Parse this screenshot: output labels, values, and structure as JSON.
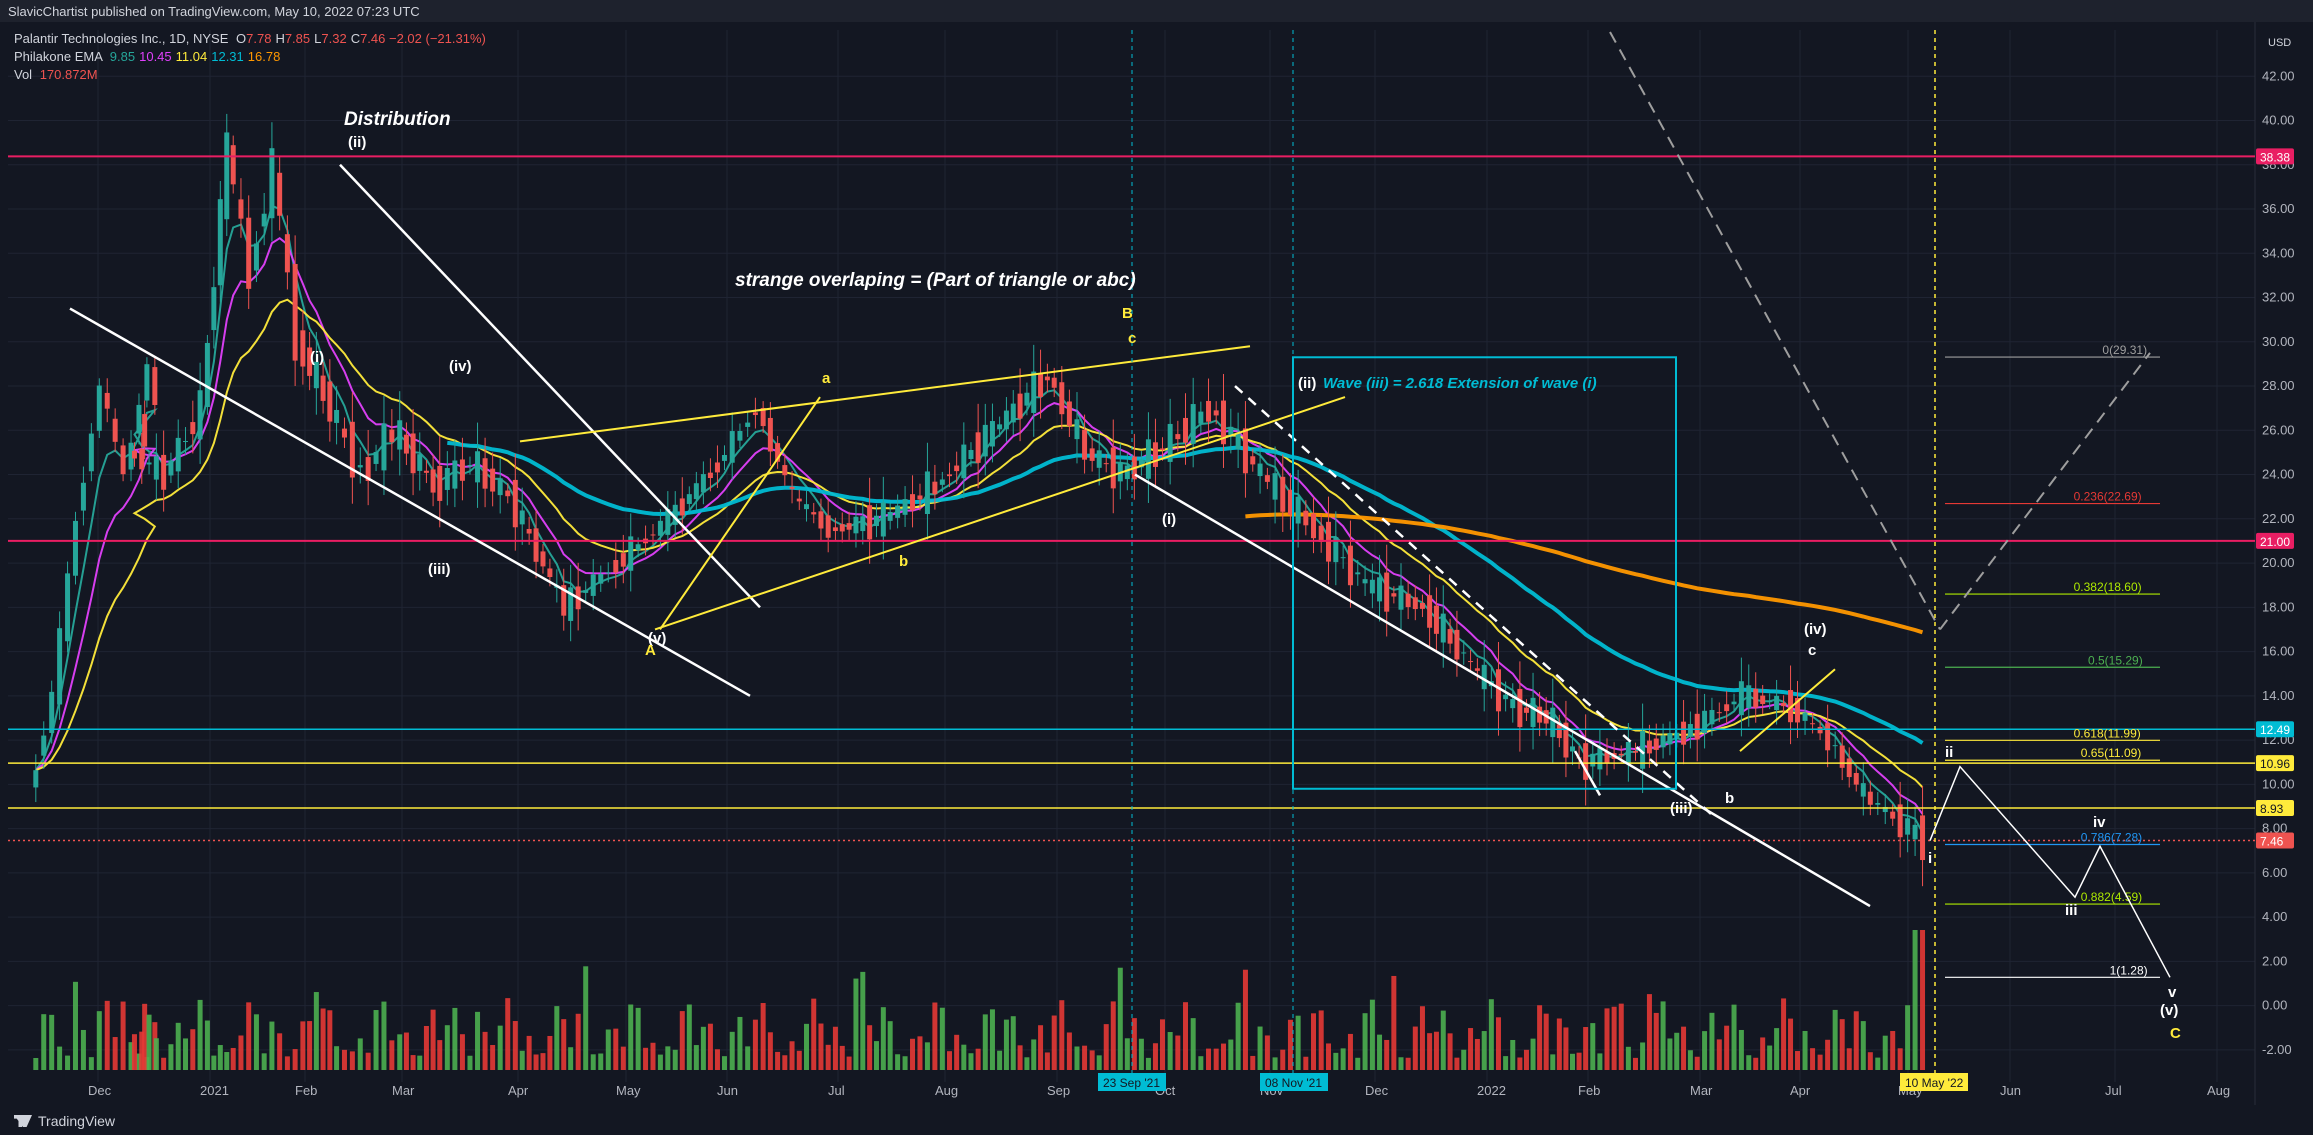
{
  "header": {
    "published": "SlavicChartist published on TradingView.com, May 10, 2022 07:23 UTC"
  },
  "legend": {
    "symbol": "Palantir Technologies Inc., 1D, NYSE",
    "ohlc": [
      {
        "k": "O",
        "v": "7.78",
        "color": "#ef5350"
      },
      {
        "k": "H",
        "v": "7.85",
        "color": "#ef5350"
      },
      {
        "k": "L",
        "v": "7.32",
        "color": "#ef5350"
      },
      {
        "k": "C",
        "v": "7.46 −2.02 (−21.31%)",
        "color": "#ef5350"
      }
    ],
    "ema_label": "Philakone EMA",
    "ema_values": [
      {
        "v": "9.85",
        "color": "#26a69a"
      },
      {
        "v": "10.45",
        "color": "#e040fb"
      },
      {
        "v": "11.04",
        "color": "#ffeb3b"
      },
      {
        "v": "12.31",
        "color": "#00bcd4"
      },
      {
        "v": "16.78",
        "color": "#ff9800"
      }
    ],
    "vol_label": "Vol",
    "vol_value": "170.872M"
  },
  "footer": {
    "brand": "TradingView"
  },
  "colors": {
    "bg": "#131722",
    "grid": "#1f2433",
    "up": "#26a69a",
    "down": "#ef5350",
    "volUp": "#4caf50",
    "volDown": "#e53935",
    "yellow": "#ffeb3b",
    "cyan": "#00bcd4",
    "orange": "#ff9800",
    "magenta": "#e91e63",
    "white": "#ffffff"
  },
  "chart_data": {
    "type": "candlestick",
    "title": "Palantir Technologies Inc., 1D, NYSE",
    "currency": "USD",
    "ylim": [
      -3,
      44
    ],
    "y_ticks": [
      "-2.00",
      "0.00",
      "2.00",
      "4.00",
      "6.00",
      "8.00",
      "10.00",
      "12.00",
      "14.00",
      "16.00",
      "18.00",
      "20.00",
      "22.00",
      "24.00",
      "26.00",
      "28.00",
      "30.00",
      "32.00",
      "34.00",
      "36.00",
      "38.00",
      "40.00",
      "42.00"
    ],
    "x_labels": [
      "Dec",
      "2021",
      "Feb",
      "Mar",
      "Apr",
      "May",
      "Jun",
      "Jul",
      "Aug",
      "Sep",
      "Oct",
      "Nov",
      "Dec",
      "2022",
      "Feb",
      "Mar",
      "Apr",
      "May",
      "Jun",
      "Jul",
      "Aug"
    ],
    "date_badges": [
      "23 Sep '21",
      "08 Nov '21",
      "10 May '22"
    ],
    "price_path": [
      [
        "Dec",
        9.5
      ],
      [
        "Dec",
        14
      ],
      [
        "Dec",
        22
      ],
      [
        "Dec",
        28
      ],
      [
        "Dec",
        24
      ],
      [
        "Dec",
        29
      ],
      [
        "2021",
        25
      ],
      [
        "2021",
        24
      ],
      [
        "2021",
        27
      ],
      [
        "Feb",
        39
      ],
      [
        "Feb",
        33
      ],
      [
        "Feb",
        38
      ],
      [
        "Feb",
        30
      ],
      [
        "Mar",
        27
      ],
      [
        "Mar",
        24
      ],
      [
        "Mar",
        26
      ],
      [
        "Apr",
        23.5
      ],
      [
        "Apr",
        24.5
      ],
      [
        "Apr",
        23
      ],
      [
        "May",
        18
      ],
      [
        "May",
        20
      ],
      [
        "Jun",
        22
      ],
      [
        "Jun",
        24.5
      ],
      [
        "Jul",
        27
      ],
      [
        "Jul",
        23
      ],
      [
        "Jul",
        21.5
      ],
      [
        "Aug",
        22
      ],
      [
        "Aug",
        23.5
      ],
      [
        "Sep",
        26
      ],
      [
        "Sep",
        28.5
      ],
      [
        "Oct",
        25
      ],
      [
        "Oct",
        24
      ],
      [
        "Oct",
        25
      ],
      [
        "Nov",
        27
      ],
      [
        "Nov",
        24
      ],
      [
        "Dec",
        21.5
      ],
      [
        "Dec",
        19
      ],
      [
        "2022",
        18
      ],
      [
        "2022",
        15
      ],
      [
        "Feb",
        13.5
      ],
      [
        "Feb",
        13
      ],
      [
        "Feb",
        11
      ],
      [
        "Mar",
        11.5
      ],
      [
        "Mar",
        12.5
      ],
      [
        "Apr",
        14
      ],
      [
        "Apr",
        13.5
      ],
      [
        "May",
        12
      ],
      [
        "May",
        9.5
      ],
      [
        "May",
        7.46
      ]
    ],
    "emas": [
      {
        "name": "EMA 1",
        "color": "#26a69a",
        "last": "9.85"
      },
      {
        "name": "EMA 2",
        "color": "#e040fb",
        "last": "10.45"
      },
      {
        "name": "EMA 3",
        "color": "#ffeb3b",
        "last": "11.04"
      },
      {
        "name": "EMA 4",
        "color": "#00bcd4",
        "last": "12.31"
      },
      {
        "name": "EMA 5",
        "color": "#ff9800",
        "last": "16.78"
      }
    ],
    "horizontal_levels": [
      {
        "value": 38.38,
        "label": "38.38",
        "color": "#e91e63"
      },
      {
        "value": 21.0,
        "label": "21.00",
        "color": "#e91e63"
      },
      {
        "value": 12.49,
        "label": "12.49",
        "color": "#00bcd4"
      },
      {
        "value": 10.96,
        "label": "10.96",
        "color": "#ffeb3b"
      },
      {
        "value": 8.93,
        "label": "8.93",
        "color": "#ffeb3b"
      },
      {
        "value": 7.46,
        "label": "7.46",
        "color": "#ef5350"
      }
    ],
    "fib_levels": [
      {
        "label": "0(29.31)",
        "value": 29.31,
        "color": "#9e9e9e"
      },
      {
        "label": "0.236(22.69)",
        "value": 22.69,
        "color": "#e53935"
      },
      {
        "label": "0.382(18.60)",
        "value": 18.6,
        "color": "#aeea00"
      },
      {
        "label": "0.5(15.29)",
        "value": 15.29,
        "color": "#4caf50"
      },
      {
        "label": "0.618(11.99)",
        "value": 11.99,
        "color": "#ffeb3b"
      },
      {
        "label": "0.65(11.09)",
        "value": 11.09,
        "color": "#ffeb3b"
      },
      {
        "label": "0.786(7.28)",
        "value": 7.28,
        "color": "#2196f3"
      },
      {
        "label": "0.882(4.59)",
        "value": 4.59,
        "color": "#aeea00"
      },
      {
        "label": "1(1.28)",
        "value": 1.28,
        "color": "#ffffff"
      }
    ],
    "annotations": {
      "distribution": "Distribution",
      "overlap": "strange overlaping = (Part of triangle or abc)",
      "wave_box": "Wave (iii) = 2.618 Extension of wave (i)",
      "wave_labels": [
        "(ii)",
        "(i)",
        "(iv)",
        "(iii)",
        "(v)",
        "A",
        "a",
        "b",
        "c",
        "B",
        "(ii)",
        "(i)",
        "(iii)",
        "(iv)",
        "c",
        "b",
        "ii",
        "iv",
        "iii",
        "i",
        "v",
        "(v)",
        "C"
      ]
    }
  }
}
